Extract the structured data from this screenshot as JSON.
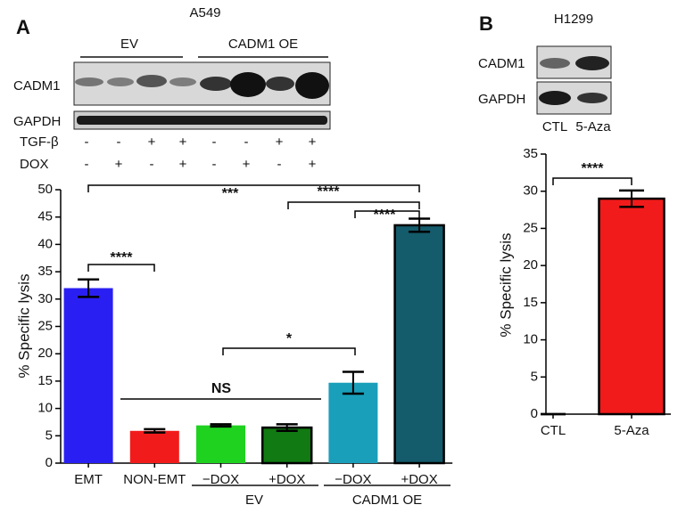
{
  "panel_labels": [
    "A",
    "B"
  ],
  "blots": [
    {
      "cell_line": "A549",
      "groups": [
        "EV",
        "CADM1 OE"
      ],
      "rows": [
        "CADM1",
        "GAPDH"
      ],
      "treatments": [
        {
          "name": "TGF-β",
          "signs": [
            "-",
            "-",
            "+",
            "+",
            "-",
            "-",
            "+",
            "+"
          ]
        },
        {
          "name": "DOX",
          "signs": [
            "-",
            "+",
            "-",
            "+",
            "-",
            "+",
            "-",
            "+"
          ]
        }
      ]
    },
    {
      "cell_line": "H1299",
      "rows": [
        "CADM1",
        "GAPDH"
      ],
      "lanes": [
        "CTL",
        "5-Aza"
      ]
    }
  ],
  "chart_data": [
    {
      "type": "bar",
      "y_label": "% Specific lysis",
      "categories": [
        "EMT",
        "NON-EMT",
        "−DOX",
        "+DOX",
        "−DOX",
        "+DOX"
      ],
      "groups": [
        "EV",
        "CADM1 OE"
      ],
      "values": [
        32,
        5.9,
        6.9,
        6.5,
        14.7,
        43.5
      ],
      "errors": [
        1.6,
        0.3,
        0.2,
        0.6,
        2.0,
        1.2
      ],
      "colors": [
        "#2a1ff2",
        "#f21b1b",
        "#1fd21f",
        "#117a12",
        "#1a9fba",
        "#145b6b"
      ],
      "ylim": [
        0,
        50
      ],
      "yticks": [
        0,
        5,
        10,
        15,
        20,
        25,
        30,
        35,
        40,
        45,
        50
      ],
      "annotations": [
        "****",
        "NS",
        "*",
        "***",
        "****",
        "****"
      ]
    },
    {
      "type": "bar",
      "y_label": "% Specific lysis",
      "categories": [
        "CTL",
        "5-Aza"
      ],
      "values": [
        0,
        29
      ],
      "errors": [
        0,
        1.1
      ],
      "colors": [
        "#f21b1b",
        "#f21b1b"
      ],
      "ylim": [
        0,
        35
      ],
      "yticks": [
        0,
        5,
        10,
        15,
        20,
        25,
        30,
        35
      ],
      "annotations": [
        "****"
      ]
    }
  ]
}
